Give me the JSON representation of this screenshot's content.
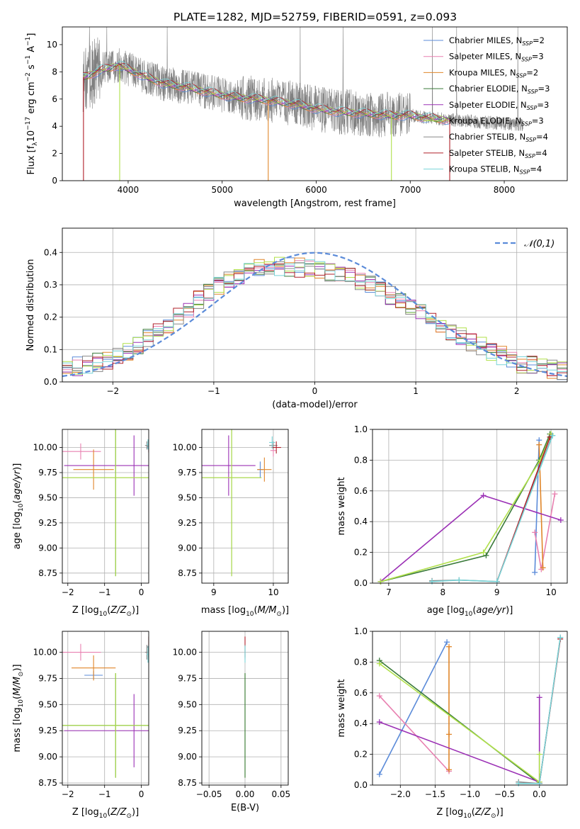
{
  "figure": {
    "title": "PLATE=1282, MJD=52759, FIBERID=0591, z=0.093"
  },
  "colors": {
    "chabrier_miles": "#5b8bd9",
    "salpeter_miles": "#e880b0",
    "kroupa_miles": "#e0862a",
    "chabrier_elodie": "#3a7a3a",
    "salpeter_elodie": "#9b30b5",
    "kroupa_elodie": "#b0e04a",
    "chabrier_stelib": "#888888",
    "salpeter_stelib": "#b0202a",
    "kroupa_stelib": "#78d4d8",
    "data": "#808080",
    "normal": "#5b8bd9",
    "grid": "#b0b0b0"
  },
  "chart_data": [
    {
      "id": "spectrum",
      "type": "line",
      "title": "PLATE=1282, MJD=52759, FIBERID=0591, z=0.093",
      "xlabel": "wavelength [Angstrom, rest frame]",
      "ylabel": "Flux [f_λ 10^-17 erg cm^-2 s^-1 A^-1]",
      "xlim": [
        3300,
        8670
      ],
      "ylim": [
        0,
        11.3
      ],
      "xticks": [
        4000,
        5000,
        6000,
        7000,
        8000
      ],
      "yticks": [
        0,
        2,
        4,
        6,
        8,
        10
      ],
      "grid": false,
      "legend_position": "top-right",
      "continuum": {
        "x": [
          3520,
          3700,
          3900,
          4000,
          4200,
          4400,
          4600,
          4800,
          5000,
          5200,
          5400,
          5600,
          5800,
          6000,
          6200,
          6400,
          6600,
          6800,
          7000,
          7200,
          7400,
          7600,
          7800,
          8000,
          8200
        ],
        "y": [
          7.6,
          8.1,
          8.5,
          8.2,
          7.6,
          7.1,
          6.9,
          6.6,
          6.3,
          6.1,
          6.0,
          5.8,
          5.6,
          5.3,
          5.1,
          5.0,
          4.9,
          4.8,
          4.8,
          4.6,
          4.5,
          4.4,
          4.3,
          4.2,
          4.1
        ]
      },
      "series": [
        {
          "name": "Chabrier MILES",
          "nssp": "2",
          "color_key": "chabrier_miles"
        },
        {
          "name": "Salpeter MILES",
          "nssp": "3",
          "color_key": "salpeter_miles"
        },
        {
          "name": "Kroupa MILES",
          "nssp": "2",
          "color_key": "kroupa_miles"
        },
        {
          "name": "Chabrier ELODIE",
          "nssp": "3",
          "color_key": "chabrier_elodie"
        },
        {
          "name": "Salpeter ELODIE",
          "nssp": "3",
          "color_key": "salpeter_elodie"
        },
        {
          "name": "Kroupa ELODIE",
          "nssp": "3",
          "color_key": "kroupa_elodie"
        },
        {
          "name": "Chabrier STELIB",
          "nssp": "4",
          "color_key": "chabrier_stelib"
        },
        {
          "name": "Salpeter STELIB",
          "nssp": "4",
          "color_key": "salpeter_stelib"
        },
        {
          "name": "Kroupa STELIB",
          "nssp": "4",
          "color_key": "kroupa_stelib"
        }
      ]
    },
    {
      "id": "residuals",
      "type": "line",
      "xlabel": "(data-model)/error",
      "ylabel": "Normed distribution",
      "xlim": [
        -2.5,
        2.5
      ],
      "ylim": [
        0,
        0.475
      ],
      "xticks": [
        -2,
        -1,
        0,
        1,
        2
      ],
      "yticks": [
        0.0,
        0.1,
        0.2,
        0.3,
        0.4
      ],
      "grid": true,
      "legend_position": "top-right",
      "legend_label": "𝒩(0,1)",
      "bin_width": 0.1,
      "histogram_envelope": {
        "x": [
          -2.5,
          -2.0,
          -1.5,
          -1.0,
          -0.5,
          0.0,
          0.5,
          1.0,
          1.5,
          2.0,
          2.5
        ],
        "y": [
          0.04,
          0.07,
          0.16,
          0.29,
          0.36,
          0.35,
          0.31,
          0.22,
          0.13,
          0.06,
          0.03
        ]
      }
    },
    {
      "id": "age_vs_Z",
      "type": "scatter",
      "xlabel": "Z [log10(Z/Z⊙)]",
      "ylabel": "age  [log10(age/yr)]",
      "xlim": [
        -2.15,
        0.2
      ],
      "ylim": [
        8.65,
        10.18
      ],
      "xticks": [
        -2,
        -1,
        0
      ],
      "yticks": [
        8.75,
        9.0,
        9.25,
        9.5,
        9.75,
        10.0
      ],
      "grid": true,
      "points": [
        {
          "series": "Chabrier MILES",
          "x": 0.2,
          "y": 10.0,
          "xerr": 0.05,
          "yerr": 0.04
        },
        {
          "series": "Salpeter MILES",
          "x": -1.65,
          "y": 9.96,
          "xerr": 0.55,
          "yerr": 0.08
        },
        {
          "series": "Kroupa MILES",
          "x": -1.3,
          "y": 9.78,
          "xerr": 0.55,
          "yerr": 0.2
        },
        {
          "series": "Chabrier ELODIE",
          "x": -0.7,
          "y": 9.7,
          "xerr": 1.45,
          "yerr": 0.98
        },
        {
          "series": "Salpeter ELODIE",
          "x": -0.2,
          "y": 9.82,
          "xerr": 1.9,
          "yerr": 0.3
        },
        {
          "series": "Kroupa ELODIE",
          "x": -0.7,
          "y": 9.7,
          "xerr": 1.45,
          "yerr": 0.98
        },
        {
          "series": "Chabrier STELIB",
          "x": 0.15,
          "y": 10.02,
          "xerr": 0.05,
          "yerr": 0.04
        },
        {
          "series": "Salpeter STELIB",
          "x": 0.2,
          "y": 10.01,
          "xerr": 0.04,
          "yerr": 0.06
        },
        {
          "series": "Kroupa STELIB",
          "x": 0.18,
          "y": 10.03,
          "xerr": 0.04,
          "yerr": 0.05
        }
      ]
    },
    {
      "id": "age_vs_mass",
      "type": "scatter",
      "xlabel": "mass [log10(M/M⊙)]",
      "ylabel": "",
      "xlim": [
        8.8,
        10.25
      ],
      "ylim": [
        8.65,
        10.18
      ],
      "xticks": [
        9,
        10
      ],
      "yticks": [
        8.75,
        9.0,
        9.25,
        9.5,
        9.75,
        10.0
      ],
      "grid": true,
      "points": [
        {
          "series": "Chabrier MILES",
          "x": 9.78,
          "y": 9.78,
          "xerr": 0.05,
          "yerr": 0.08
        },
        {
          "series": "Salpeter MILES",
          "x": 10.0,
          "y": 9.97,
          "xerr": 0.05,
          "yerr": 0.06
        },
        {
          "series": "Kroupa MILES",
          "x": 9.85,
          "y": 9.78,
          "xerr": 0.12,
          "yerr": 0.12
        },
        {
          "series": "Chabrier ELODIE",
          "x": 9.3,
          "y": 9.7,
          "xerr": 0.5,
          "yerr": 0.98
        },
        {
          "series": "Salpeter ELODIE",
          "x": 9.25,
          "y": 9.82,
          "xerr": 0.45,
          "yerr": 0.3
        },
        {
          "series": "Kroupa ELODIE",
          "x": 9.3,
          "y": 9.7,
          "xerr": 0.5,
          "yerr": 0.98
        },
        {
          "series": "Chabrier STELIB",
          "x": 10.0,
          "y": 10.02,
          "xerr": 0.07,
          "yerr": 0.04
        },
        {
          "series": "Salpeter STELIB",
          "x": 10.05,
          "y": 10.0,
          "xerr": 0.08,
          "yerr": 0.06
        },
        {
          "series": "Kroupa STELIB",
          "x": 9.98,
          "y": 10.05,
          "xerr": 0.05,
          "yerr": 0.06
        }
      ]
    },
    {
      "id": "mass_weight_vs_age",
      "type": "line",
      "xlabel": "age  [log10(age/yr)]",
      "ylabel": "mass weight",
      "xlim": [
        6.7,
        10.3
      ],
      "ylim": [
        0,
        1.0
      ],
      "xticks": [
        7,
        8,
        9,
        10
      ],
      "yticks": [
        0.0,
        0.2,
        0.4,
        0.6,
        0.8,
        1.0
      ],
      "grid": true,
      "series": [
        {
          "name": "Chabrier MILES",
          "x": [
            9.7,
            9.78
          ],
          "y": [
            0.07,
            0.93
          ]
        },
        {
          "name": "Salpeter MILES",
          "x": [
            9.7,
            9.82,
            10.07
          ],
          "y": [
            0.33,
            0.09,
            0.58
          ]
        },
        {
          "name": "Kroupa MILES",
          "x": [
            9.78,
            9.85
          ],
          "y": [
            0.9,
            0.1
          ]
        },
        {
          "name": "Chabrier ELODIE",
          "x": [
            6.85,
            8.8,
            9.78,
            9.98
          ],
          "y": [
            0.01,
            0.18,
            0.8,
            0.97
          ]
        },
        {
          "name": "Salpeter ELODIE",
          "x": [
            6.85,
            8.75,
            10.18
          ],
          "y": [
            0.01,
            0.57,
            0.41
          ]
        },
        {
          "name": "Kroupa ELODIE",
          "x": [
            6.85,
            8.75,
            9.8,
            10.0
          ],
          "y": [
            0.01,
            0.2,
            0.8,
            0.97
          ]
        },
        {
          "name": "Chabrier STELIB",
          "x": [
            7.8,
            8.3,
            9.0,
            10.02
          ],
          "y": [
            0.015,
            0.02,
            0.01,
            0.96
          ]
        },
        {
          "name": "Salpeter STELIB",
          "x": [
            9.0,
            9.98
          ],
          "y": [
            0.01,
            0.95
          ]
        },
        {
          "name": "Kroupa STELIB",
          "x": [
            7.8,
            8.3,
            9.0,
            10.03
          ],
          "y": [
            0.01,
            0.02,
            0.01,
            0.96
          ]
        }
      ]
    },
    {
      "id": "mass_vs_Z",
      "type": "scatter",
      "xlabel": "Z [log10(Z/Z⊙)]",
      "ylabel": "mass [log10(M/M⊙)]",
      "xlim": [
        -2.15,
        0.2
      ],
      "ylim": [
        8.73,
        10.2
      ],
      "xticks": [
        -2,
        -1,
        0
      ],
      "yticks": [
        8.75,
        9.0,
        9.25,
        9.5,
        9.75,
        10.0
      ],
      "grid": true,
      "points": [
        {
          "series": "Chabrier MILES",
          "x": -1.3,
          "y": 9.78,
          "xerr": 0.25,
          "yerr": 0.04
        },
        {
          "series": "Salpeter MILES",
          "x": -1.65,
          "y": 10.0,
          "xerr": 0.55,
          "yerr": 0.08
        },
        {
          "series": "Kroupa MILES",
          "x": -1.3,
          "y": 9.85,
          "xerr": 0.6,
          "yerr": 0.12
        },
        {
          "series": "Chabrier ELODIE",
          "x": -0.7,
          "y": 9.3,
          "xerr": 1.45,
          "yerr": 0.5
        },
        {
          "series": "Salpeter ELODIE",
          "x": -0.2,
          "y": 9.25,
          "xerr": 1.9,
          "yerr": 0.35
        },
        {
          "series": "Kroupa ELODIE",
          "x": -0.7,
          "y": 9.3,
          "xerr": 1.45,
          "yerr": 0.5
        },
        {
          "series": "Chabrier STELIB",
          "x": 0.15,
          "y": 10.0,
          "xerr": 0.05,
          "yerr": 0.07
        },
        {
          "series": "Salpeter STELIB",
          "x": 0.2,
          "y": 10.05,
          "xerr": 0.04,
          "yerr": 0.1
        },
        {
          "series": "Kroupa STELIB",
          "x": 0.18,
          "y": 9.98,
          "xerr": 0.04,
          "yerr": 0.08
        }
      ]
    },
    {
      "id": "mass_vs_ebv",
      "type": "scatter",
      "xlabel": "E(B-V)",
      "ylabel": "",
      "xlim": [
        -0.06,
        0.06
      ],
      "ylim": [
        8.73,
        10.2
      ],
      "xticks": [
        -0.05,
        0.0,
        0.05
      ],
      "yticks": [
        8.75,
        9.0,
        9.25,
        9.5,
        9.75,
        10.0
      ],
      "grid": true,
      "points": [
        {
          "series": "Salpeter STELIB",
          "x": 0.0,
          "y": 10.05,
          "xerr": 0.0,
          "yerr": 0.1
        },
        {
          "series": "Chabrier STELIB",
          "x": 0.0,
          "y": 10.0,
          "xerr": 0.0,
          "yerr": 0.07
        },
        {
          "series": "Kroupa STELIB",
          "x": 0.0,
          "y": 9.98,
          "xerr": 0.0,
          "yerr": 0.08
        },
        {
          "series": "Kroupa ELODIE",
          "x": 0.0,
          "y": 9.3,
          "xerr": 0.0,
          "yerr": 0.5
        },
        {
          "series": "Chabrier ELODIE",
          "x": 0.0,
          "y": 9.3,
          "xerr": 0.0,
          "yerr": 0.5
        }
      ]
    },
    {
      "id": "mass_weight_vs_Z",
      "type": "line",
      "xlabel": "Z [log10(Z/Z⊙)]",
      "ylabel": "mass weight",
      "xlim": [
        -2.4,
        0.4
      ],
      "ylim": [
        0,
        1.0
      ],
      "xticks": [
        -2.0,
        -1.5,
        -1.0,
        -0.5,
        0.0
      ],
      "yticks": [
        0.0,
        0.2,
        0.4,
        0.6,
        0.8,
        1.0
      ],
      "grid": true,
      "series": [
        {
          "name": "Chabrier MILES",
          "x": [
            -2.3,
            -1.33
          ],
          "y": [
            0.07,
            0.93
          ]
        },
        {
          "name": "Salpeter MILES",
          "x": [
            -2.3,
            -1.3
          ],
          "y": [
            0.58,
            0.09
          ]
        },
        {
          "name": "Kroupa MILES",
          "x": [
            -1.3,
            -1.3,
            -1.3
          ],
          "y": [
            0.9,
            0.33,
            0.1
          ]
        },
        {
          "name": "Chabrier ELODIE",
          "x": [
            -2.3,
            0.0
          ],
          "y": [
            0.81,
            0.01
          ]
        },
        {
          "name": "Salpeter ELODIE",
          "x": [
            -2.3,
            0.0,
            0.0
          ],
          "y": [
            0.41,
            0.02,
            0.57
          ]
        },
        {
          "name": "Kroupa ELODIE",
          "x": [
            -2.3,
            0.0,
            0.0
          ],
          "y": [
            0.79,
            0.02,
            0.2
          ]
        },
        {
          "name": "Chabrier STELIB",
          "x": [
            -0.3,
            0.0,
            0.3
          ],
          "y": [
            0.02,
            0.01,
            0.96
          ]
        },
        {
          "name": "Salpeter STELIB",
          "x": [
            0.0,
            0.3
          ],
          "y": [
            0.01,
            0.95
          ]
        },
        {
          "name": "Kroupa STELIB",
          "x": [
            -0.3,
            0.0,
            0.3
          ],
          "y": [
            0.01,
            0.01,
            0.96
          ]
        }
      ]
    }
  ]
}
